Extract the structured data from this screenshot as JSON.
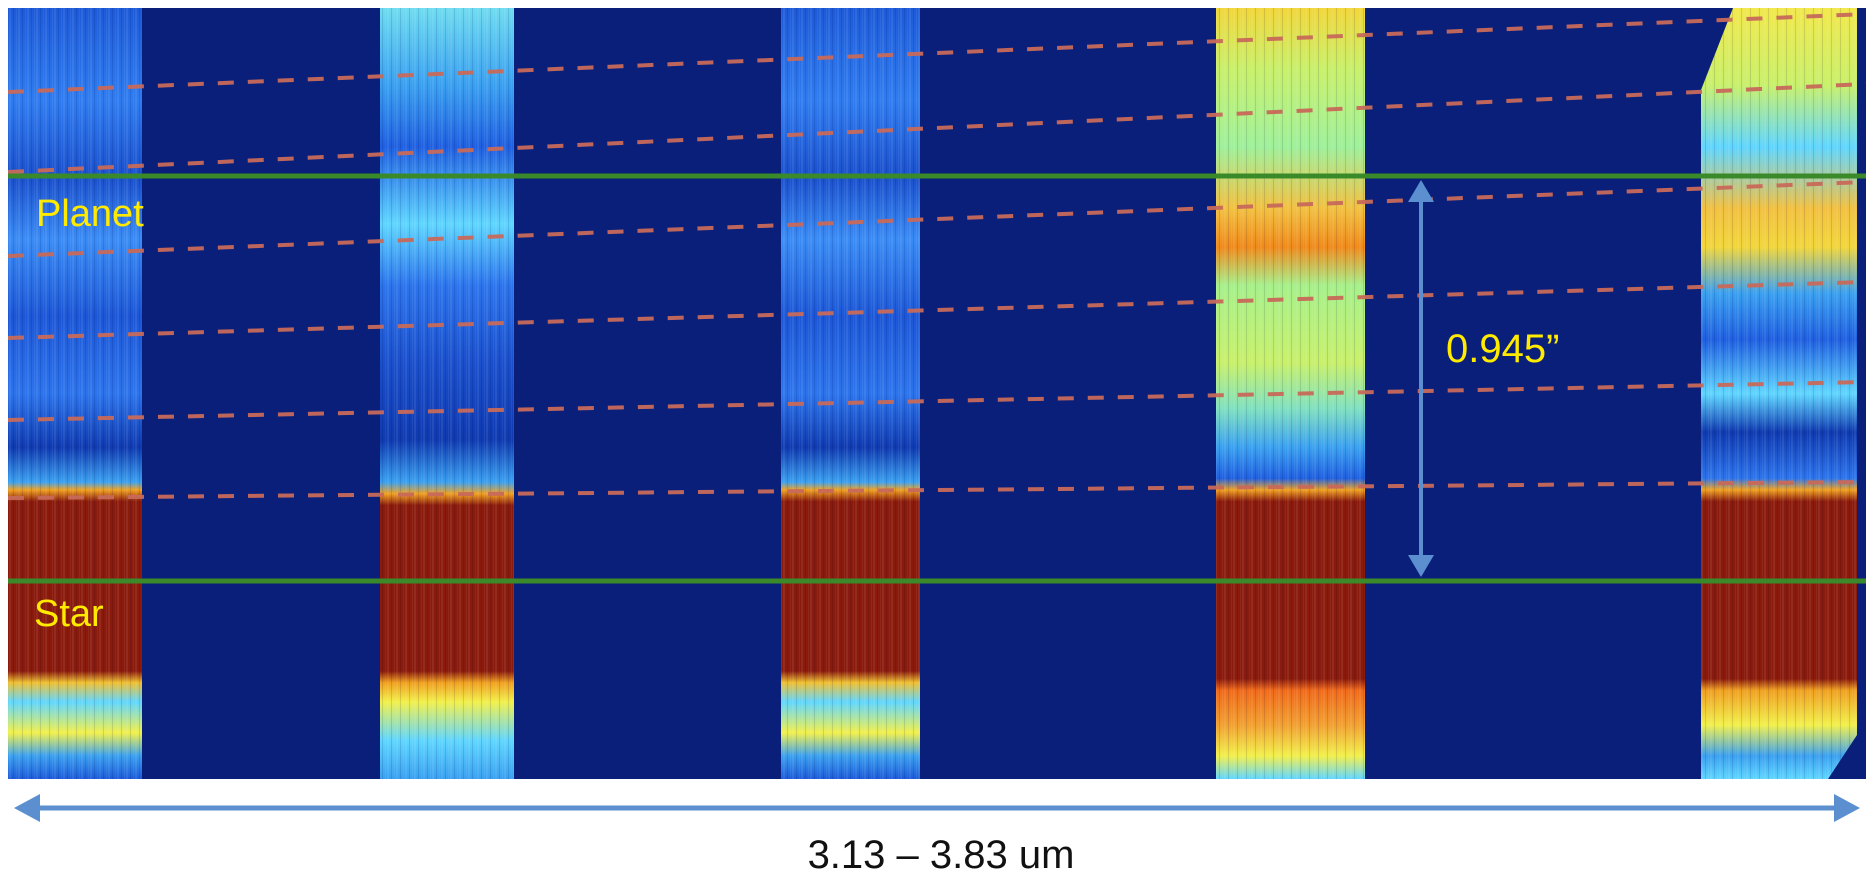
{
  "labels": {
    "planet": "Planet",
    "star": "Star",
    "separation": "0.945”",
    "wavelength_range": "3.13 – 3.83 um"
  },
  "colors": {
    "background_deep_blue": "#0a1f7a",
    "detector_blue": "#1f5fe0",
    "detector_cyan": "#5fd6ff",
    "detector_yellow": "#f2f04a",
    "detector_orange": "#f08a1a",
    "star_core_red": "#8a1a0c",
    "reference_line_green": "#3a8a2a",
    "trace_dash_red": "#c86a5a",
    "label_yellow": "#ffea00",
    "arrow_blue": "#5b8fd0",
    "caption_black": "#111111"
  }
}
